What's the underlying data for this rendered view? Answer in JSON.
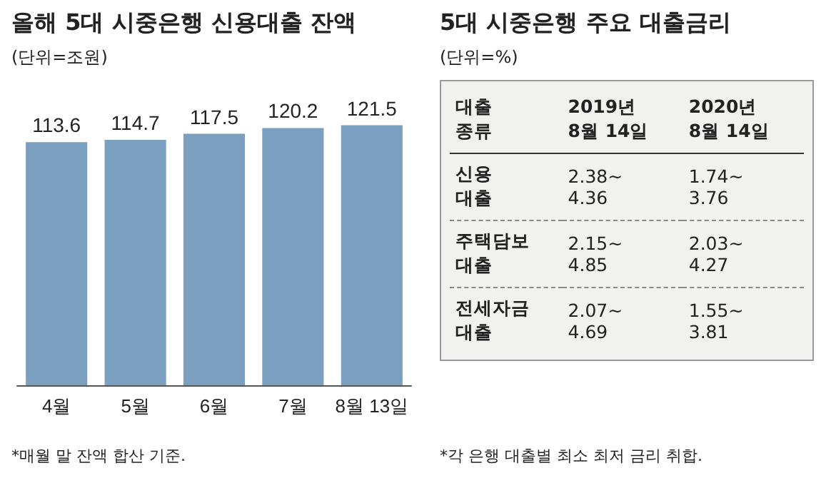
{
  "chart_data": [
    {
      "type": "bar",
      "title": "올해 5대 시중은행 신용대출 잔액",
      "subtitle": "(단위=조원)",
      "categories": [
        "4월",
        "5월",
        "6월",
        "7월",
        "8월 13일"
      ],
      "values": [
        113.6,
        114.7,
        117.5,
        120.2,
        121.5
      ],
      "color": "#7b9fbf",
      "tick_labels": "x",
      "data_labels": true,
      "annotations": [
        "*매월 말 잔액 합산 기준."
      ]
    },
    {
      "type": "other",
      "title": "5대 시중은행 주요 대출금리",
      "subtitle": "(단위=%)",
      "categories": [
        "2019년\n8월 14일",
        "2020년\n8월 14일"
      ],
      "y_categories": [
        "신용\n대출",
        "주택담보\n대출",
        "전세자금\n대출"
      ],
      "cell_labels": [
        [
          "2.38~\n4.36",
          "1.74~\n3.76"
        ],
        [
          "2.15~\n4.85",
          "2.03~\n4.27"
        ],
        [
          "2.07~\n4.69",
          "1.55~\n3.81"
        ]
      ],
      "annotations": [
        "대출\n종류",
        "*각 은행 대출별 최소 최저 금리 취합."
      ]
    }
  ]
}
